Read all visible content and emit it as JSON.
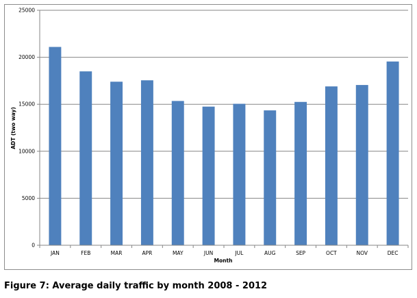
{
  "caption": "Figure 7: Average daily traffic by month 2008 - 2012",
  "chart_data": {
    "type": "bar",
    "categories": [
      "JAN",
      "FEB",
      "MAR",
      "APR",
      "MAY",
      "JUN",
      "JUL",
      "AUG",
      "SEP",
      "OCT",
      "NOV",
      "DEC"
    ],
    "series": [
      {
        "values": [
          21100,
          18500,
          17400,
          17550,
          15350,
          14750,
          15050,
          14350,
          15250,
          16900,
          17050,
          19550
        ]
      }
    ],
    "xlabel": "Month",
    "ylabel": "ADT (two way)",
    "ylim": [
      0,
      25000
    ],
    "yticks": [
      0,
      5000,
      10000,
      15000,
      20000,
      25000
    ],
    "grid": true,
    "legend": "none",
    "bar_color": "#4f81bd",
    "grid_color": "#868686"
  }
}
